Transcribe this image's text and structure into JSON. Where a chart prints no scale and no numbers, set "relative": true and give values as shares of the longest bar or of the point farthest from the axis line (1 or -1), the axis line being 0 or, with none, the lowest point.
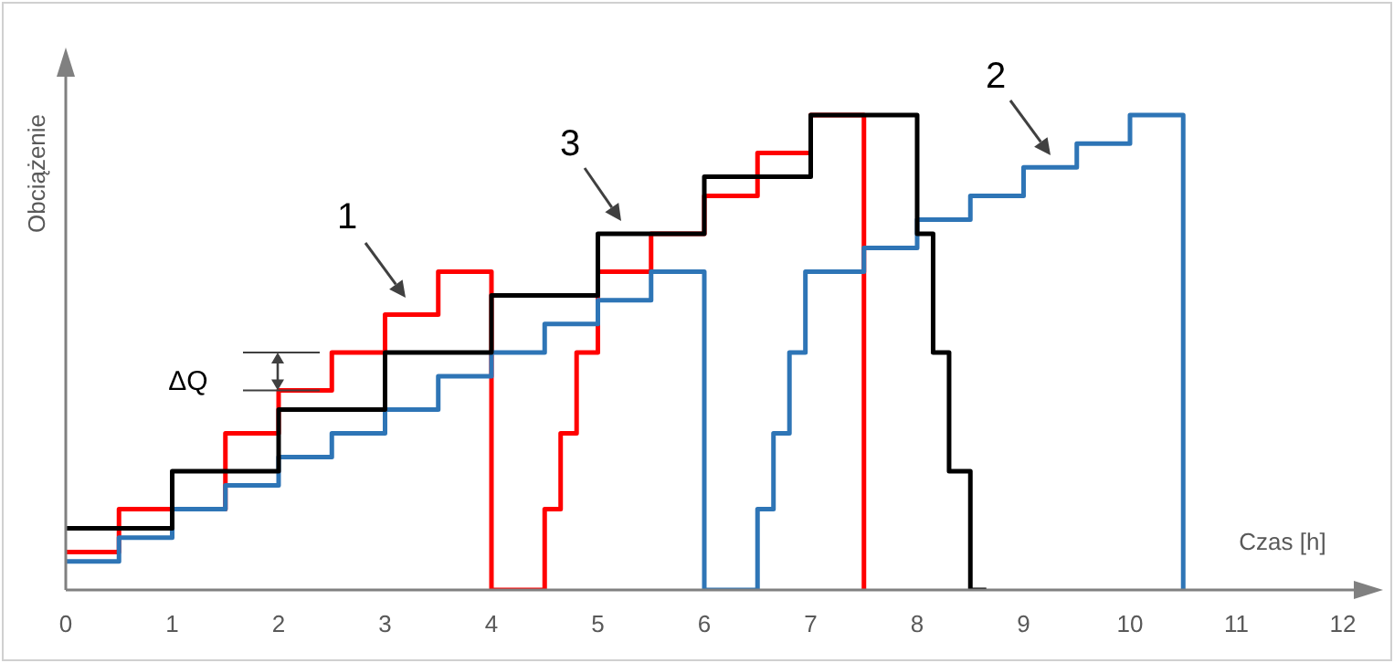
{
  "chart_data": {
    "type": "step",
    "relative": true,
    "xlabel": "Czas [h]",
    "ylabel": "Obciążenie",
    "xlim": [
      0,
      12
    ],
    "xticks": [
      0,
      1,
      2,
      3,
      4,
      5,
      6,
      7,
      8,
      9,
      10,
      11,
      12
    ],
    "annotations": [
      "ΔQ"
    ],
    "legend": false,
    "grid": false,
    "series": [
      {
        "name": "1",
        "color": "#ff0000",
        "x": [
          0,
          0.5,
          1.5,
          2,
          2.5,
          3,
          3.5,
          4,
          4.5,
          4.65,
          4.8,
          5,
          5.5,
          6,
          6.5,
          7,
          7.5
        ],
        "values": [
          0.08,
          0.17,
          0.33,
          0.42,
          0.5,
          0.58,
          0.67,
          0,
          0.17,
          0.33,
          0.5,
          0.67,
          0.75,
          0.83,
          0.92,
          1,
          0
        ]
      },
      {
        "name": "2",
        "color": "#2e75b6",
        "x": [
          0,
          0.5,
          1,
          1.5,
          2,
          2.5,
          3,
          3.5,
          4,
          4.5,
          5,
          5.5,
          6,
          6.5,
          6.65,
          6.8,
          6.95,
          7.5,
          8,
          8.5,
          9,
          9.5,
          10,
          10.5
        ],
        "values": [
          0.06,
          0.11,
          0.17,
          0.22,
          0.28,
          0.33,
          0.38,
          0.45,
          0.5,
          0.56,
          0.61,
          0.67,
          0,
          0.17,
          0.33,
          0.5,
          0.67,
          0.72,
          0.78,
          0.83,
          0.89,
          0.94,
          1,
          0
        ]
      },
      {
        "name": "3",
        "color": "#000000",
        "x": [
          0,
          1,
          2,
          3,
          4,
          5,
          6,
          7,
          8,
          8.15,
          8.3,
          8.5,
          8.65
        ],
        "values": [
          0.13,
          0.25,
          0.38,
          0.5,
          0.62,
          0.75,
          0.87,
          1,
          0.75,
          0.5,
          0.25,
          0,
          0
        ]
      }
    ]
  }
}
